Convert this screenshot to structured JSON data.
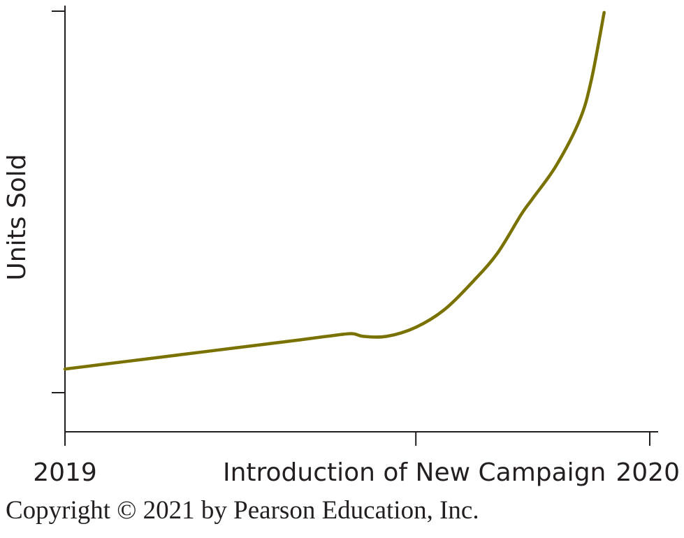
{
  "chart_data": {
    "type": "line",
    "ylabel": "Units Sold",
    "xlabel": "",
    "x_tick_labels": [
      "2019",
      "Introduction of New Campaign",
      "2020"
    ],
    "series": [
      {
        "color": "#7a7200",
        "x": [
          0.0,
          0.1,
          0.2,
          0.3,
          0.4,
          0.45,
          0.49,
          0.51,
          0.55,
          0.6,
          0.65,
          0.7,
          0.74,
          0.78,
          0.8,
          0.84,
          0.88,
          0.9,
          0.922
        ],
        "y": [
          0.03,
          0.07,
          0.11,
          0.15,
          0.19,
          0.211,
          0.225,
          0.21,
          0.21,
          0.26,
          0.36,
          0.52,
          0.67,
          0.88,
          0.97,
          1.15,
          1.4,
          1.62,
          1.993
        ]
      }
    ],
    "xlim": [
      0,
      1
    ],
    "ylim": [
      -0.1,
      2.0
    ],
    "line_color": "#7a7200",
    "axis_color": "#231f20",
    "grid": false,
    "legend": "none"
  },
  "footer": {
    "copyright": "Copyright © 2021 by Pearson Education, Inc."
  }
}
